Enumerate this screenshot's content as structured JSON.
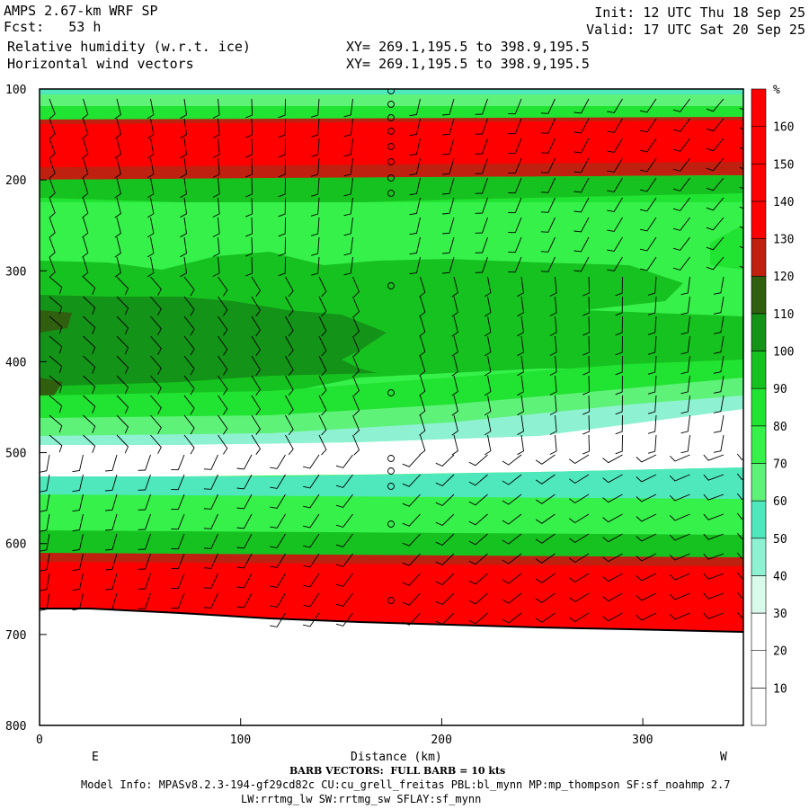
{
  "header": {
    "model": "AMPS 2.67-km WRF SP",
    "fcst": "Fcst:   53 h",
    "field1": "Relative humidity (w.r.t. ice)",
    "field2": "Horizontal wind vectors",
    "xy1": "XY= 269.1,195.5 to 398.9,195.5",
    "xy2": "XY= 269.1,195.5 to 398.9,195.5",
    "init": "Init: 12 UTC Thu 18 Sep 25",
    "valid": "Valid: 17 UTC Sat 20 Sep 25"
  },
  "footer": {
    "barb_note": "BARB VECTORS:  FULL BARB = 10 kts",
    "model_info": "Model Info: MPASv8.2.3-194-gf29cd82c CU:cu_grell_freitas PBL:bl_mynn MP:mp_thompson SF:sf_noahmp 2.7",
    "model_info2": "LW:rrtmg_lw SW:rrtmg_sw SFLAY:sf_mynn"
  },
  "colors": {
    "c0": "#ffffff",
    "c10": "#ffffff",
    "c20": "#ffffff",
    "c30": "#d8fbec",
    "c40": "#8ef2d2",
    "c50": "#4fe8bd",
    "c60": "#5ff279",
    "c70": "#36f14a",
    "c80": "#21e331",
    "c90": "#16c21f",
    "c100": "#139318",
    "c110": "#2f5f0f",
    "c120": "#c0200f",
    "c130": "#ff0000",
    "c140": "#ff0000",
    "c150": "#ff0000",
    "c160": "#ff0000"
  },
  "chart_data": {
    "type": "heatmap",
    "title": "Relative humidity (w.r.t. ice)",
    "xlabel": "Distance (km)",
    "ylabel": "",
    "x_ticks": [
      "0",
      "100",
      "200",
      "300"
    ],
    "y_ticks": [
      "100",
      "200",
      "300",
      "400",
      "500",
      "600",
      "700",
      "800"
    ],
    "xlim": [
      0,
      350
    ],
    "ylim": [
      800,
      100
    ],
    "side_labels": [
      "E",
      "W"
    ],
    "colorbar": {
      "unit": "%",
      "levels": [
        "10",
        "20",
        "30",
        "40",
        "50",
        "60",
        "70",
        "80",
        "90",
        "100",
        "110",
        "120",
        "130",
        "140",
        "150",
        "160"
      ]
    }
  }
}
